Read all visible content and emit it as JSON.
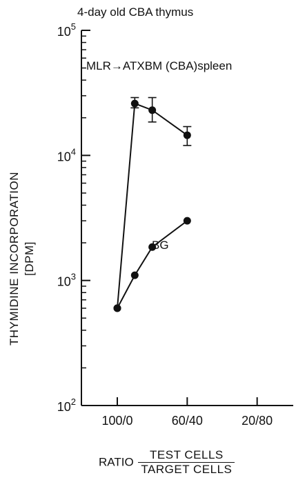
{
  "chart_data": {
    "type": "line",
    "title": "4-day old CBA thymus",
    "ylabel_line1": "THYMIDINE INCORPORATION",
    "ylabel_line2": "[DPM]",
    "xlabel_prefix": "RATIO",
    "xlabel_numerator": "TEST CELLS",
    "xlabel_denominator": "TARGET CELLS",
    "xlim": [
      0,
      100
    ],
    "ylim": [
      100,
      100000
    ],
    "yscale": "log",
    "x_ticks": [
      {
        "x": 0,
        "label": "100/0"
      },
      {
        "x": 40,
        "label": "60/40"
      },
      {
        "x": 80,
        "label": "20/80"
      }
    ],
    "y_major_ticks": [
      {
        "y": 100,
        "base": "10",
        "exp": "2"
      },
      {
        "y": 1000,
        "base": "10",
        "exp": "3"
      },
      {
        "y": 10000,
        "base": "10",
        "exp": "4"
      },
      {
        "y": 100000,
        "base": "10",
        "exp": "5"
      }
    ],
    "series": [
      {
        "name": "MLR→ATXBM (CBA)spleen",
        "x": [
          0,
          10,
          20,
          40
        ],
        "y": [
          600,
          26000,
          23000,
          14500
        ],
        "err_low": [
          null,
          24000,
          18500,
          12000
        ],
        "err_high": [
          null,
          29000,
          29000,
          17000
        ]
      },
      {
        "name": "BG",
        "x": [
          0,
          10,
          20,
          40
        ],
        "y": [
          600,
          1100,
          1850,
          3000
        ]
      }
    ],
    "grid": false,
    "legend": "none"
  }
}
